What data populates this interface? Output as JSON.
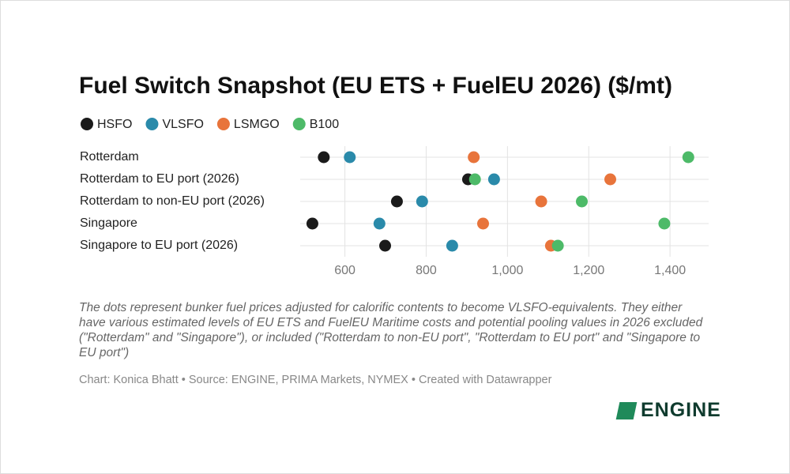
{
  "chart_data": {
    "type": "dot",
    "title": "Fuel Switch Snapshot (EU ETS + FuelEU 2026) ($/mt)",
    "categories": [
      "Rotterdam",
      "Rotterdam to EU port (2026)",
      "Rotterdam to non-EU port (2026)",
      "Singapore",
      "Singapore to EU port (2026)"
    ],
    "series": [
      {
        "name": "HSFO",
        "color": "#1b1b1b",
        "values": [
          548,
          903,
          728,
          520,
          699
        ]
      },
      {
        "name": "VLSFO",
        "color": "#2a8aaa",
        "values": [
          612,
          967,
          790,
          685,
          864
        ]
      },
      {
        "name": "LSMGO",
        "color": "#e8743b",
        "values": [
          917,
          1253,
          1083,
          940,
          1107
        ]
      },
      {
        "name": "B100",
        "color": "#4dba68",
        "values": [
          1445,
          920,
          1183,
          1386,
          1124
        ]
      }
    ],
    "xlim": [
      490,
      1495
    ],
    "xticks": [
      600,
      800,
      {
        "value": 1000,
        "label": "1,000"
      },
      {
        "value": 1200,
        "label": "1,200"
      },
      {
        "value": 1400,
        "label": "1,400"
      }
    ],
    "grid": true,
    "legend": "top",
    "note": "The dots represent bunker fuel prices adjusted for calorific contents to become VLSFO-equivalents. They either have various estimated levels of EU ETS and FuelEU Maritime costs and potential pooling values in 2026 excluded (\"Rotterdam\" and \"Singapore\"), or included (\"Rotterdam to non-EU port\", \"Rotterdam to EU port\" and \"Singapore to EU port\")",
    "source": "Chart: Konica Bhatt • Source: ENGINE, PRIMA Markets, NYMEX • Created with Datawrapper",
    "brand": "ENGINE"
  }
}
